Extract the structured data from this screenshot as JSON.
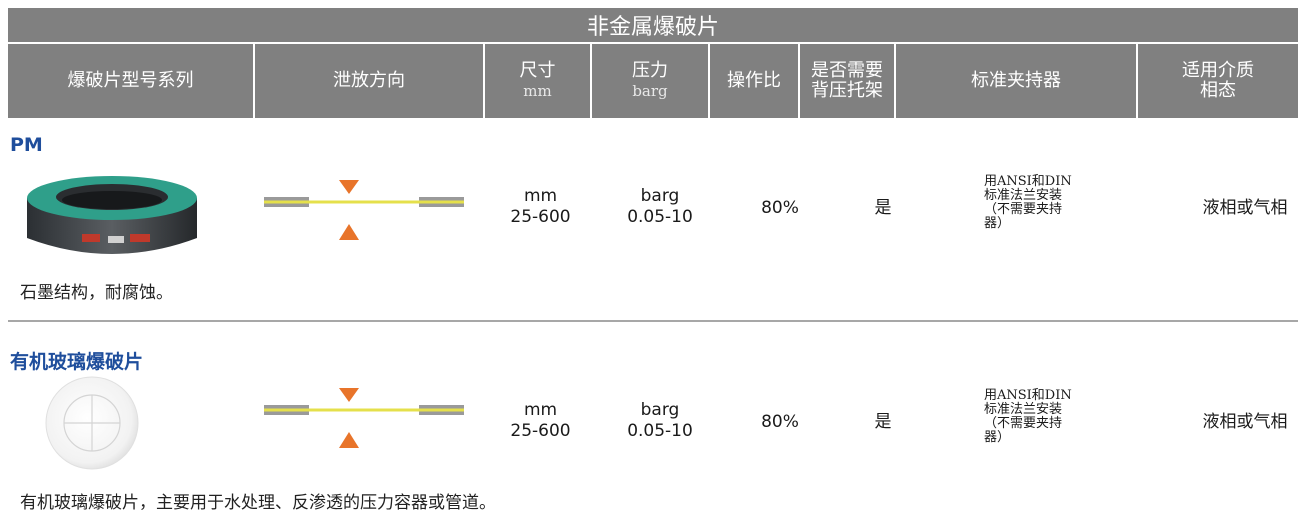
{
  "table": {
    "title": "非金属爆破片",
    "headers": {
      "series": "爆破片型号系列",
      "direction": "泄放方向",
      "size": "尺寸",
      "size_unit": "mm",
      "pressure": "压力",
      "pressure_unit": "barg",
      "ratio": "操作比",
      "backpressure_line1": "是否需要",
      "backpressure_line2": "背压托架",
      "holder": "标准夹持器",
      "media_line1": "适用介质",
      "media_line2": "相态"
    },
    "rows": [
      {
        "name": "PM",
        "image_icon": "graphite-rupture-disc-image",
        "size_unit": "mm",
        "size_value": "25-600",
        "pressure_unit": "barg",
        "pressure_value": "0.05-10",
        "ratio": "80%",
        "backpressure": "是",
        "holder_line1": "用ANSI和DIN",
        "holder_line2": "标准法兰安装",
        "holder_line3": "（不需要夹持",
        "holder_line4": "器）",
        "media": "液相或气相",
        "description": "石墨结构，耐腐蚀。"
      },
      {
        "name": "有机玻璃爆破片",
        "image_icon": "acrylic-rupture-disc-image",
        "size_unit": "mm",
        "size_value": "25-600",
        "pressure_unit": "barg",
        "pressure_value": "0.05-10",
        "ratio": "80%",
        "backpressure": "是",
        "holder_line1": "用ANSI和DIN",
        "holder_line2": "标准法兰安装",
        "holder_line3": "（不需要夹持",
        "holder_line4": "器）",
        "media": "液相或气相",
        "description": "有机玻璃爆破片，主要用于水处理、反渗透的压力容器或管道。"
      }
    ],
    "colors": {
      "header_bg": "#808080",
      "title_blue": "#1f4e9c",
      "arrow_orange": "#e8742a",
      "disc_yellow": "#e5e04b"
    }
  }
}
